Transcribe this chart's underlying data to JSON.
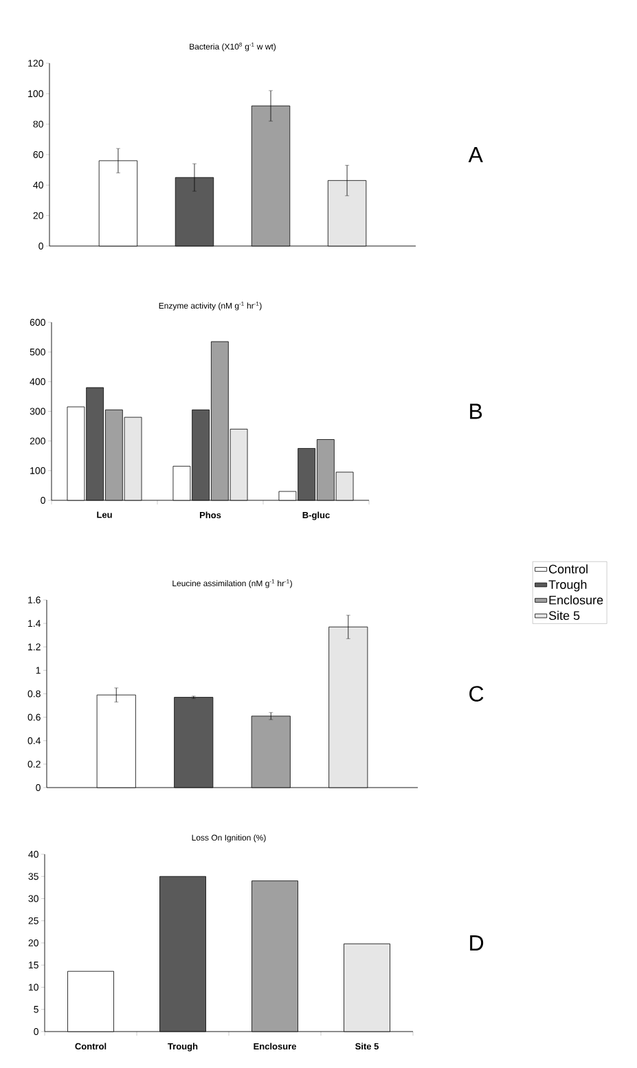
{
  "chart_data": [
    {
      "type": "bar",
      "title": "Bacteria (X10$^{8}$ g$^{-1}$ w wt)",
      "categories": [
        null,
        null,
        null,
        null
      ],
      "values": [
        56,
        45,
        92,
        43
      ],
      "errors": [
        8,
        9,
        10,
        10
      ],
      "colors": [
        "#ffffff",
        "#5a5a5a",
        "#a0a0a0",
        "#e6e6e6"
      ],
      "ylim": [
        0,
        120
      ],
      "yticks": [
        0,
        20,
        40,
        60,
        80,
        100,
        120
      ],
      "tick_labels": "y",
      "annotations": [
        "A"
      ]
    },
    {
      "type": "bar",
      "title": "Enzyme activity (nM g$^{-1}$ hr$^{-1}$)",
      "categories": [
        "Leu",
        "Phos",
        "B-gluc"
      ],
      "series": [
        {
          "name": "Control",
          "color": "#ffffff",
          "values": [
            315,
            115,
            30
          ]
        },
        {
          "name": "Trough",
          "color": "#5a5a5a",
          "values": [
            380,
            305,
            175
          ]
        },
        {
          "name": "Enclosure",
          "color": "#a0a0a0",
          "values": [
            305,
            535,
            205
          ]
        },
        {
          "name": "Site 5",
          "color": "#e6e6e6",
          "values": [
            280,
            240,
            95
          ]
        }
      ],
      "ylim": [
        0,
        600
      ],
      "yticks": [
        0,
        100,
        200,
        300,
        400,
        500,
        600
      ],
      "legend": "right",
      "annotations": [
        "B"
      ]
    },
    {
      "type": "bar",
      "title": "Leucine assimilation (nM g$^{-1}$ hr$^{-1}$)",
      "categories": [
        null,
        null,
        null,
        null
      ],
      "values": [
        0.79,
        0.77,
        0.61,
        1.37
      ],
      "errors": [
        0.06,
        0.01,
        0.03,
        0.1
      ],
      "colors": [
        "#ffffff",
        "#5a5a5a",
        "#a0a0a0",
        "#e6e6e6"
      ],
      "ylim": [
        0,
        1.6
      ],
      "yticks": [
        0,
        0.2,
        0.4,
        0.6,
        0.8,
        1,
        1.2,
        1.4,
        1.6
      ],
      "tick_labels": "y",
      "annotations": [
        "C"
      ]
    },
    {
      "type": "bar",
      "title": "Loss On Ignition (%)",
      "categories": [
        "Control",
        "Trough",
        "Enclosure",
        "Site 5"
      ],
      "values": [
        13.6,
        35,
        34,
        19.8
      ],
      "colors": [
        "#ffffff",
        "#5a5a5a",
        "#a0a0a0",
        "#e6e6e6"
      ],
      "ylim": [
        0,
        40
      ],
      "yticks": [
        0,
        5,
        10,
        15,
        20,
        25,
        30,
        35,
        40
      ],
      "annotations": [
        "D"
      ]
    }
  ]
}
